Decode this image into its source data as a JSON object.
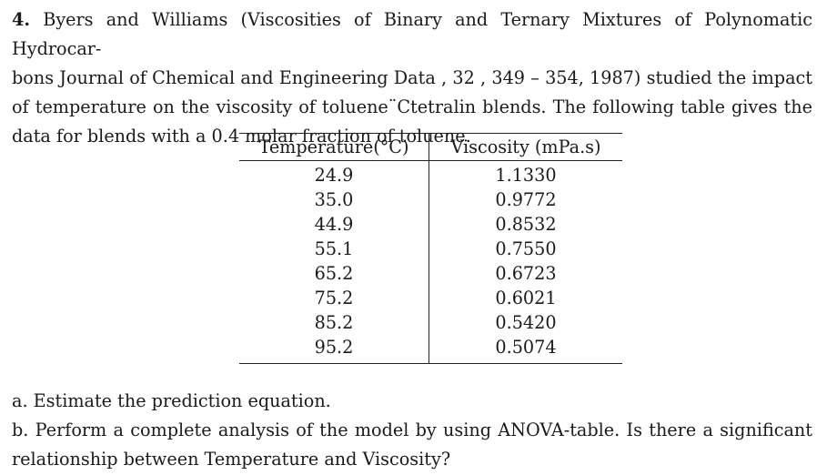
{
  "problem": {
    "number": "4.",
    "lines": [
      "Byers and Williams (Viscosities of Binary and Ternary Mixtures of Polynomatic Hydrocar-",
      "bons Journal of Chemical and Engineering Data , 32 , 349 – 354, 1987) studied the impact",
      "of temperature on the viscosity of toluene¨Ctetralin blends. The following table gives the",
      "data for blends with a 0.4 molar fraction of toluene."
    ]
  },
  "table": {
    "headers": [
      "Temperature(°C)",
      "Viscosity (mPa.s)"
    ],
    "rows": [
      [
        "24.9",
        "1.1330"
      ],
      [
        "35.0",
        "0.9772"
      ],
      [
        "44.9",
        "0.8532"
      ],
      [
        "55.1",
        "0.7550"
      ],
      [
        "65.2",
        "0.6723"
      ],
      [
        "75.2",
        "0.6021"
      ],
      [
        "85.2",
        "0.5420"
      ],
      [
        "95.2",
        "0.5074"
      ]
    ]
  },
  "questions": {
    "a": "a. Estimate the prediction equation.",
    "b_line1": "b. Perform a complete analysis of the model by using ANOVA-table. Is there a significant",
    "b_line2": "relationship between Temperature and Viscosity?"
  }
}
